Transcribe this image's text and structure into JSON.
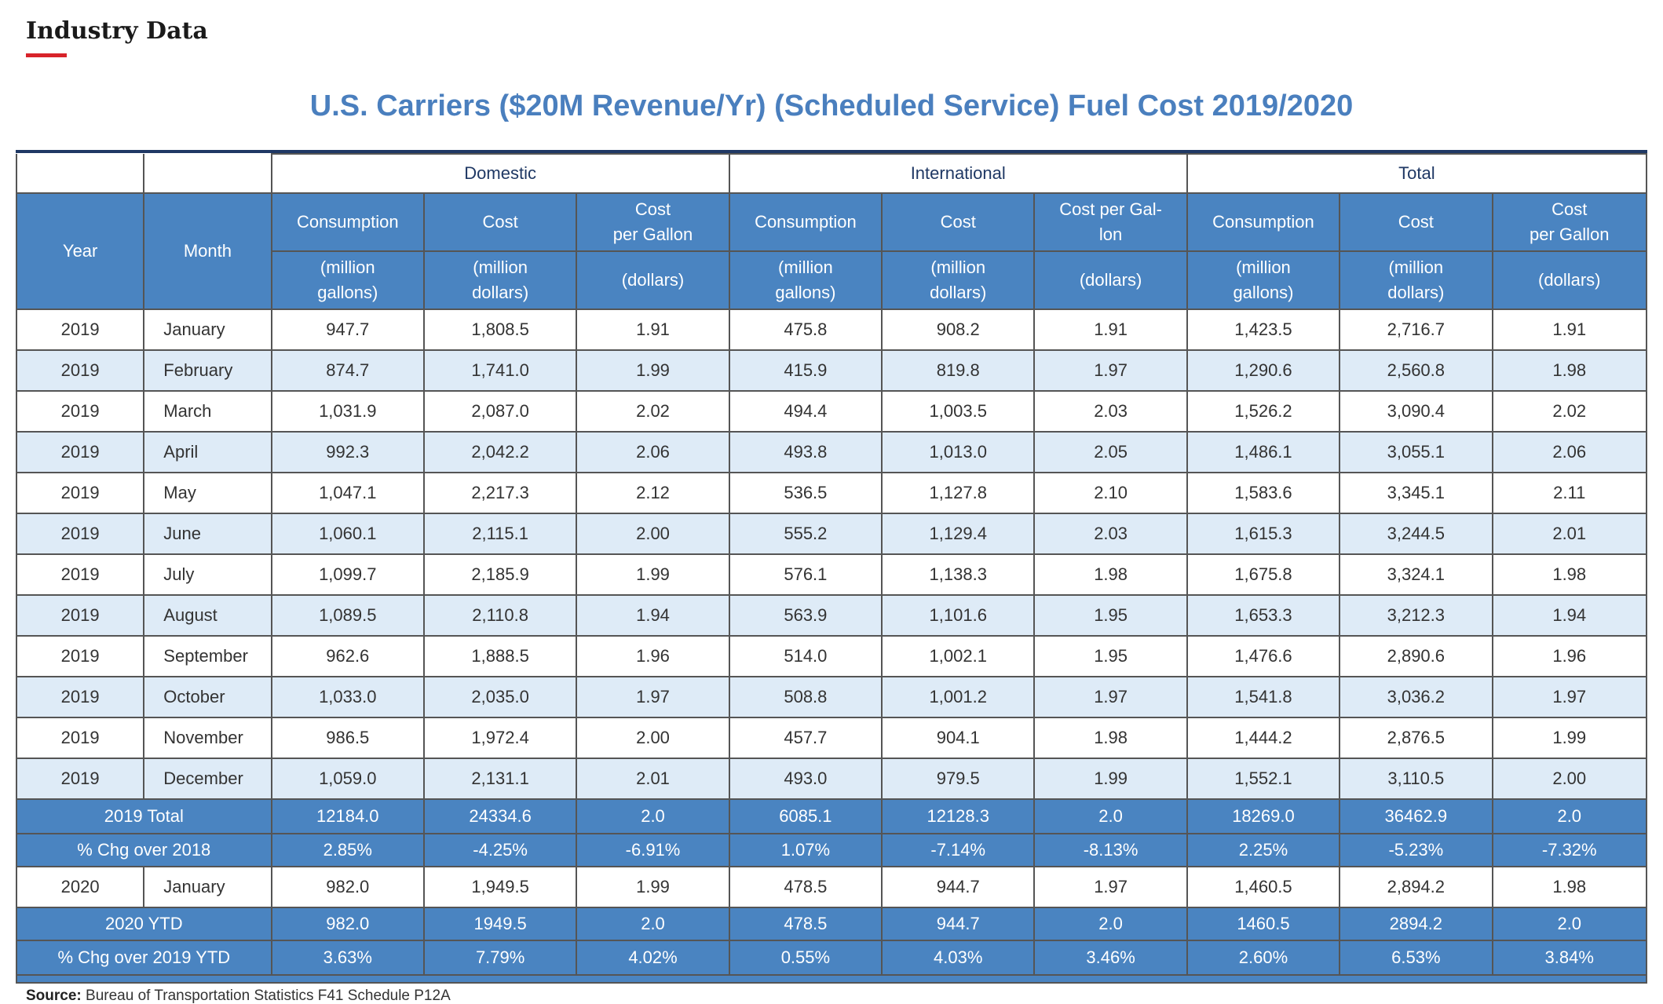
{
  "header": {
    "label": "Industry Data",
    "accent_color": "#d8232a"
  },
  "title": "U.S. Carriers ($20M Revenue/Yr) (Scheduled Service) Fuel Cost 2019/2020",
  "groups": {
    "domestic": "Domestic",
    "international": "International",
    "total": "Total"
  },
  "columns": {
    "year": "Year",
    "month": "Month",
    "consumption": "Consumption",
    "cost": "Cost",
    "cpg_split": "Cost\nper Gallon",
    "cpg_hyphen": "Cost per Gal-\nlon",
    "unit_gallons": "(million\ngallons)",
    "unit_dollars_m": "(million\ndollars)",
    "unit_dollars": "(dollars)"
  },
  "rows": [
    {
      "year": "2019",
      "month": "January",
      "d_cons": "947.7",
      "d_cost": "1,808.5",
      "d_cpg": "1.91",
      "i_cons": "475.8",
      "i_cost": "908.2",
      "i_cpg": "1.91",
      "t_cons": "1,423.5",
      "t_cost": "2,716.7",
      "t_cpg": "1.91"
    },
    {
      "year": "2019",
      "month": "February",
      "d_cons": "874.7",
      "d_cost": "1,741.0",
      "d_cpg": "1.99",
      "i_cons": "415.9",
      "i_cost": "819.8",
      "i_cpg": "1.97",
      "t_cons": "1,290.6",
      "t_cost": "2,560.8",
      "t_cpg": "1.98"
    },
    {
      "year": "2019",
      "month": "March",
      "d_cons": "1,031.9",
      "d_cost": "2,087.0",
      "d_cpg": "2.02",
      "i_cons": "494.4",
      "i_cost": "1,003.5",
      "i_cpg": "2.03",
      "t_cons": "1,526.2",
      "t_cost": "3,090.4",
      "t_cpg": "2.02"
    },
    {
      "year": "2019",
      "month": "April",
      "d_cons": "992.3",
      "d_cost": "2,042.2",
      "d_cpg": "2.06",
      "i_cons": "493.8",
      "i_cost": "1,013.0",
      "i_cpg": "2.05",
      "t_cons": "1,486.1",
      "t_cost": "3,055.1",
      "t_cpg": "2.06"
    },
    {
      "year": "2019",
      "month": "May",
      "d_cons": "1,047.1",
      "d_cost": "2,217.3",
      "d_cpg": "2.12",
      "i_cons": "536.5",
      "i_cost": "1,127.8",
      "i_cpg": "2.10",
      "t_cons": "1,583.6",
      "t_cost": "3,345.1",
      "t_cpg": "2.11"
    },
    {
      "year": "2019",
      "month": "June",
      "d_cons": "1,060.1",
      "d_cost": "2,115.1",
      "d_cpg": "2.00",
      "i_cons": "555.2",
      "i_cost": "1,129.4",
      "i_cpg": "2.03",
      "t_cons": "1,615.3",
      "t_cost": "3,244.5",
      "t_cpg": "2.01"
    },
    {
      "year": "2019",
      "month": "July",
      "d_cons": "1,099.7",
      "d_cost": "2,185.9",
      "d_cpg": "1.99",
      "i_cons": "576.1",
      "i_cost": "1,138.3",
      "i_cpg": "1.98",
      "t_cons": "1,675.8",
      "t_cost": "3,324.1",
      "t_cpg": "1.98"
    },
    {
      "year": "2019",
      "month": "August",
      "d_cons": "1,089.5",
      "d_cost": "2,110.8",
      "d_cpg": "1.94",
      "i_cons": "563.9",
      "i_cost": "1,101.6",
      "i_cpg": "1.95",
      "t_cons": "1,653.3",
      "t_cost": "3,212.3",
      "t_cpg": "1.94"
    },
    {
      "year": "2019",
      "month": "September",
      "d_cons": "962.6",
      "d_cost": "1,888.5",
      "d_cpg": "1.96",
      "i_cons": "514.0",
      "i_cost": "1,002.1",
      "i_cpg": "1.95",
      "t_cons": "1,476.6",
      "t_cost": "2,890.6",
      "t_cpg": "1.96"
    },
    {
      "year": "2019",
      "month": "October",
      "d_cons": "1,033.0",
      "d_cost": "2,035.0",
      "d_cpg": "1.97",
      "i_cons": "508.8",
      "i_cost": "1,001.2",
      "i_cpg": "1.97",
      "t_cons": "1,541.8",
      "t_cost": "3,036.2",
      "t_cpg": "1.97"
    },
    {
      "year": "2019",
      "month": "November",
      "d_cons": "986.5",
      "d_cost": "1,972.4",
      "d_cpg": "2.00",
      "i_cons": "457.7",
      "i_cost": "904.1",
      "i_cpg": "1.98",
      "t_cons": "1,444.2",
      "t_cost": "2,876.5",
      "t_cpg": "1.99"
    },
    {
      "year": "2019",
      "month": "December",
      "d_cons": "1,059.0",
      "d_cost": "2,131.1",
      "d_cpg": "2.01",
      "i_cons": "493.0",
      "i_cost": "979.5",
      "i_cpg": "1.99",
      "t_cons": "1,552.1",
      "t_cost": "3,110.5",
      "t_cpg": "2.00"
    }
  ],
  "total_2019": {
    "label": "2019 Total",
    "d_cons": "12184.0",
    "d_cost": "24334.6",
    "d_cpg": "2.0",
    "i_cons": "6085.1",
    "i_cost": "12128.3",
    "i_cpg": "2.0",
    "t_cons": "18269.0",
    "t_cost": "36462.9",
    "t_cpg": "2.0"
  },
  "chg_2018": {
    "label": "% Chg over 2018",
    "d_cons": "2.85%",
    "d_cost": "-4.25%",
    "d_cpg": "-6.91%",
    "i_cons": "1.07%",
    "i_cost": "-7.14%",
    "i_cpg": "-8.13%",
    "t_cons": "2.25%",
    "t_cost": "-5.23%",
    "t_cpg": "-7.32%"
  },
  "row_2020": {
    "year": "2020",
    "month": "January",
    "d_cons": "982.0",
    "d_cost": "1,949.5",
    "d_cpg": "1.99",
    "i_cons": "478.5",
    "i_cost": "944.7",
    "i_cpg": "1.97",
    "t_cons": "1,460.5",
    "t_cost": "2,894.2",
    "t_cpg": "1.98"
  },
  "ytd_2020": {
    "label": "2020 YTD",
    "d_cons": "982.0",
    "d_cost": "1949.5",
    "d_cpg": "2.0",
    "i_cons": "478.5",
    "i_cost": "944.7",
    "i_cpg": "2.0",
    "t_cons": "1460.5",
    "t_cost": "2894.2",
    "t_cpg": "2.0"
  },
  "chg_2019_ytd": {
    "label": "% Chg over 2019 YTD",
    "d_cons": "3.63%",
    "d_cost": "7.79%",
    "d_cpg": "4.02%",
    "i_cons": "0.55%",
    "i_cost": "4.03%",
    "i_cpg": "3.46%",
    "t_cons": "2.60%",
    "t_cost": "6.53%",
    "t_cpg": "3.84%"
  },
  "source": {
    "label": "Source:",
    "text": "Bureau of Transportation Statistics F41 Schedule P12A"
  },
  "colors": {
    "title": "#4a7fbe",
    "header_fill": "#4a84c1",
    "alt_row": "#deebf7",
    "group_text": "#1f3864"
  }
}
